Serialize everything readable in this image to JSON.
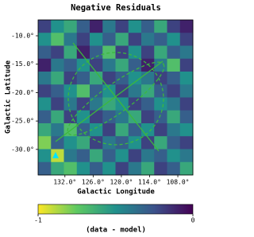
{
  "chart_data": {
    "type": "heatmap",
    "title": "Negative Residuals",
    "xlabel": "Galactic Longitude",
    "ylabel": "Galactic Latitude",
    "xlim": [
      137.7,
      104.8
    ],
    "ylim": [
      -34.5,
      -7.2
    ],
    "xticks": [
      {
        "value": 132,
        "label": "132.0°"
      },
      {
        "value": 126,
        "label": "126.0°"
      },
      {
        "value": 120,
        "label": "120.0°"
      },
      {
        "value": 114,
        "label": "114.0°"
      },
      {
        "value": 108,
        "label": "108.0°"
      }
    ],
    "yticks": [
      {
        "value": -10,
        "label": "-10.0°"
      },
      {
        "value": -15,
        "label": "-15.0°"
      },
      {
        "value": -20,
        "label": "-20.0°"
      },
      {
        "value": -25,
        "label": "-25.0°"
      },
      {
        "value": -30,
        "label": "-30.0°"
      }
    ],
    "clim": [
      -1,
      0
    ],
    "cticks": [
      -1,
      0
    ],
    "colorbar_label": "(data - model)",
    "colormap": "viridis_r",
    "z": [
      [
        -0.2,
        -0.5,
        -0.6,
        -0.3,
        -0.1,
        -0.4,
        -0.2,
        -0.5,
        -0.3,
        -0.6,
        -0.2,
        -0.1
      ],
      [
        -0.5,
        -0.7,
        -0.4,
        -0.2,
        -0.5,
        -0.3,
        -0.6,
        -0.2,
        -0.4,
        -0.3,
        -0.5,
        -0.2
      ],
      [
        -0.3,
        -0.2,
        -0.6,
        -0.1,
        -0.3,
        -0.7,
        -0.2,
        -0.5,
        -0.2,
        -0.6,
        -0.3,
        -0.4
      ],
      [
        -0.1,
        -0.4,
        -0.3,
        -0.5,
        -0.2,
        -0.4,
        -0.6,
        -0.3,
        -0.1,
        -0.4,
        -0.7,
        -0.2
      ],
      [
        -0.4,
        -0.6,
        -0.2,
        -0.3,
        -0.6,
        -0.2,
        -0.3,
        -0.5,
        -0.4,
        -0.2,
        -0.3,
        -0.5
      ],
      [
        -0.2,
        -0.3,
        -0.5,
        -0.7,
        -0.3,
        -0.5,
        -0.2,
        -0.4,
        -0.6,
        -0.3,
        -0.2,
        -0.4
      ],
      [
        -0.5,
        -0.2,
        -0.4,
        -0.2,
        -0.4,
        -0.6,
        -0.5,
        -0.2,
        -0.3,
        -0.5,
        -0.4,
        -0.2
      ],
      [
        -0.3,
        -0.6,
        -0.2,
        -0.5,
        -0.2,
        -0.3,
        -0.4,
        -0.6,
        -0.2,
        -0.3,
        -0.6,
        -0.3
      ],
      [
        -0.6,
        -0.4,
        -0.7,
        -0.3,
        -0.5,
        -0.2,
        -0.6,
        -0.3,
        -0.5,
        -0.2,
        -0.4,
        -0.5
      ],
      [
        -0.8,
        -0.3,
        -0.5,
        -0.6,
        -0.2,
        -0.4,
        -0.3,
        -0.5,
        -0.2,
        -0.6,
        -0.3,
        -0.2
      ],
      [
        -0.5,
        -0.9,
        -0.4,
        -0.3,
        -0.6,
        -0.3,
        -0.5,
        -0.2,
        -0.4,
        -0.3,
        -0.5,
        -0.4
      ],
      [
        -0.3,
        -0.6,
        -0.7,
        -0.5,
        -0.3,
        -0.5,
        -0.2,
        -0.4,
        -0.6,
        -0.2,
        -0.3,
        -0.6
      ]
    ]
  }
}
